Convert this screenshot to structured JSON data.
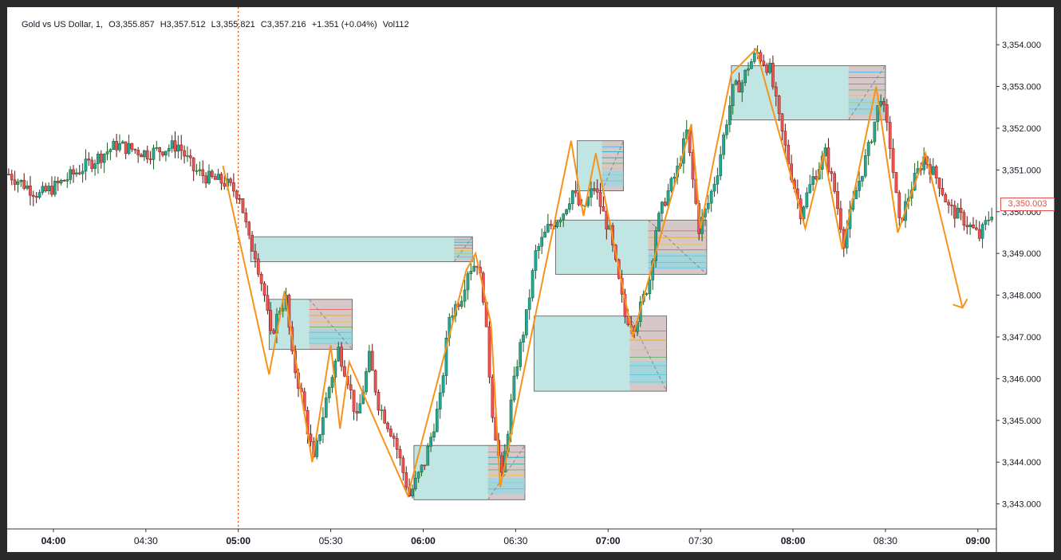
{
  "legend": {
    "symbol": "Gold vs US Dollar, 1,",
    "open": "O3,355.857",
    "high": "H3,357.512",
    "low": "L3,355.821",
    "close": "C3,357.216",
    "change": "+1.351 (+0.04%)",
    "volume": "Vol112"
  },
  "current_price_label": "3,350.003",
  "colors": {
    "up": "#26a69a",
    "down": "#ef5350",
    "candle_body": "#26a69a",
    "zone_fill": "#b2dfdb",
    "zigzag": "#f7931a",
    "session_line": "#e65100",
    "price_tag": "#e0504f"
  },
  "chart_data": {
    "type": "candlestick",
    "title": "Gold vs US Dollar, 1",
    "interval": "1 minute",
    "x_axis": {
      "ticks": [
        "04:00",
        "04:30",
        "05:00",
        "05:30",
        "06:00",
        "06:30",
        "07:00",
        "07:30",
        "08:00",
        "08:30",
        "09:00"
      ],
      "bold_ticks": [
        "04:00",
        "05:00",
        "06:00",
        "07:00",
        "08:00",
        "09:00"
      ],
      "range": [
        "03:45",
        "09:06"
      ]
    },
    "y_axis": {
      "ticks": [
        "3,354.000",
        "3,353.000",
        "3,352.000",
        "3,351.000",
        "3,350.000",
        "3,349.000",
        "3,348.000",
        "3,347.000",
        "3,346.000",
        "3,345.000",
        "3,344.000",
        "3,343.000"
      ],
      "range": [
        3342.4,
        3354.9
      ]
    },
    "close_path": [
      [
        "03:45",
        3350.9
      ],
      [
        "03:55",
        3350.4
      ],
      [
        "04:00",
        3350.6
      ],
      [
        "04:10",
        3351.1
      ],
      [
        "04:20",
        3351.6
      ],
      [
        "04:30",
        3351.4
      ],
      [
        "04:40",
        3351.6
      ],
      [
        "04:45",
        3351.0
      ],
      [
        "04:50",
        3350.8
      ],
      [
        "04:55",
        3350.7
      ],
      [
        "05:00",
        3350.4
      ],
      [
        "05:03",
        3349.3
      ],
      [
        "05:05",
        3349.0
      ],
      [
        "05:08",
        3348.0
      ],
      [
        "05:10",
        3347.0
      ],
      [
        "05:13",
        3347.7
      ],
      [
        "05:15",
        3347.9
      ],
      [
        "05:17",
        3346.5
      ],
      [
        "05:20",
        3345.6
      ],
      [
        "05:24",
        3344.0
      ],
      [
        "05:28",
        3345.5
      ],
      [
        "05:32",
        3346.7
      ],
      [
        "05:35",
        3346.0
      ],
      [
        "05:38",
        3345.0
      ],
      [
        "05:42",
        3346.5
      ],
      [
        "05:45",
        3345.4
      ],
      [
        "05:50",
        3344.6
      ],
      [
        "05:55",
        3343.2
      ],
      [
        "06:00",
        3344.0
      ],
      [
        "06:05",
        3345.5
      ],
      [
        "06:08",
        3347.5
      ],
      [
        "06:12",
        3348.0
      ],
      [
        "06:14",
        3348.6
      ],
      [
        "06:17",
        3348.8
      ],
      [
        "06:19",
        3348.0
      ],
      [
        "06:22",
        3345.2
      ],
      [
        "06:25",
        3343.6
      ],
      [
        "06:28",
        3345.4
      ],
      [
        "06:30",
        3346.4
      ],
      [
        "06:33",
        3347.5
      ],
      [
        "06:36",
        3349.0
      ],
      [
        "06:40",
        3349.6
      ],
      [
        "06:45",
        3350.0
      ],
      [
        "06:48",
        3350.5
      ],
      [
        "06:51",
        3350.0
      ],
      [
        "06:55",
        3350.6
      ],
      [
        "07:00",
        3349.5
      ],
      [
        "07:03",
        3348.3
      ],
      [
        "07:05",
        3347.5
      ],
      [
        "07:08",
        3347.3
      ],
      [
        "07:10",
        3347.7
      ],
      [
        "07:13",
        3348.4
      ],
      [
        "07:15",
        3349.6
      ],
      [
        "07:18",
        3350.3
      ],
      [
        "07:22",
        3351.0
      ],
      [
        "07:25",
        3351.9
      ],
      [
        "07:29",
        3349.6
      ],
      [
        "07:32",
        3350.2
      ],
      [
        "07:35",
        3351.0
      ],
      [
        "07:38",
        3352.2
      ],
      [
        "07:40",
        3352.9
      ],
      [
        "07:43",
        3353.1
      ],
      [
        "07:45",
        3353.5
      ],
      [
        "07:48",
        3353.8
      ],
      [
        "07:52",
        3353.4
      ],
      [
        "07:55",
        3352.2
      ],
      [
        "07:58",
        3351.2
      ],
      [
        "08:02",
        3350.0
      ],
      [
        "08:06",
        3350.8
      ],
      [
        "08:10",
        3351.4
      ],
      [
        "08:13",
        3350.5
      ],
      [
        "08:16",
        3349.3
      ],
      [
        "08:20",
        3350.5
      ],
      [
        "08:24",
        3351.5
      ],
      [
        "08:28",
        3352.8
      ],
      [
        "08:31",
        3351.6
      ],
      [
        "08:34",
        3349.7
      ],
      [
        "08:38",
        3350.6
      ],
      [
        "08:42",
        3351.3
      ],
      [
        "08:47",
        3350.7
      ],
      [
        "08:50",
        3350.1
      ],
      [
        "08:55",
        3349.8
      ],
      [
        "09:00",
        3349.4
      ],
      [
        "09:04",
        3350.0
      ]
    ],
    "zigzag": [
      [
        "04:55",
        3351.1
      ],
      [
        "05:10",
        3346.1
      ],
      [
        "05:15",
        3348.1
      ],
      [
        "05:24",
        3344.0
      ],
      [
        "05:30",
        3346.8
      ],
      [
        "05:33",
        3344.8
      ],
      [
        "05:36",
        3346.4
      ],
      [
        "05:55",
        3343.2
      ],
      [
        "06:14",
        3348.6
      ],
      [
        "06:17",
        3349.0
      ],
      [
        "06:22",
        3347.3
      ],
      [
        "06:25",
        3343.4
      ],
      [
        "06:48",
        3351.7
      ],
      [
        "06:52",
        3349.9
      ],
      [
        "06:56",
        3351.4
      ],
      [
        "07:08",
        3347.0
      ],
      [
        "07:27",
        3352.1
      ],
      [
        "07:30",
        3349.6
      ],
      [
        "07:35",
        3351.5
      ],
      [
        "07:40",
        3353.3
      ],
      [
        "07:48",
        3353.9
      ],
      [
        "08:04",
        3349.6
      ],
      [
        "08:10",
        3351.4
      ],
      [
        "08:16",
        3349.1
      ],
      [
        "08:27",
        3353.0
      ],
      [
        "08:34",
        3349.5
      ],
      [
        "08:43",
        3351.4
      ],
      [
        "08:55",
        3347.7
      ]
    ],
    "session_marker": "05:00",
    "zones": [
      {
        "start": "05:04",
        "end": "06:16",
        "top": 3349.4,
        "bottom": 3348.8,
        "fib_start": "06:10"
      },
      {
        "start": "05:10",
        "end": "05:37",
        "top": 3347.9,
        "bottom": 3346.7,
        "fib_start": "05:23"
      },
      {
        "start": "05:57",
        "end": "06:33",
        "top": 3344.4,
        "bottom": 3343.1,
        "fib_start": "06:21"
      },
      {
        "start": "06:43",
        "end": "07:32",
        "top": 3349.8,
        "bottom": 3348.5,
        "fib_start": "07:13"
      },
      {
        "start": "06:50",
        "end": "07:05",
        "top": 3351.7,
        "bottom": 3350.5,
        "fib_start": "06:58"
      },
      {
        "start": "06:36",
        "end": "07:19",
        "top": 3347.5,
        "bottom": 3345.7,
        "fib_start": "07:07"
      },
      {
        "start": "07:40",
        "end": "08:30",
        "top": 3353.5,
        "bottom": 3352.2,
        "fib_start": "08:18"
      }
    ],
    "last_price": 3350.003
  }
}
